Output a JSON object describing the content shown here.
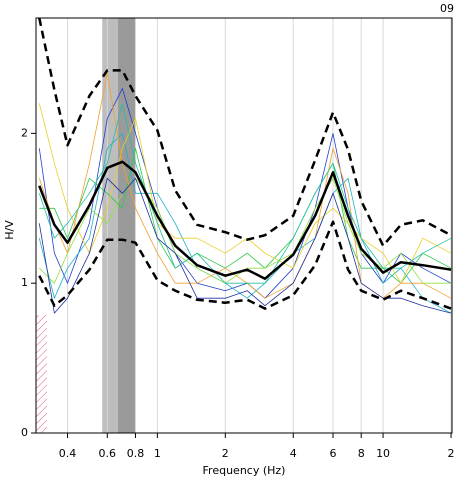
{
  "chart_data": {
    "type": "line",
    "corner_label": "09",
    "xlabel": "Frequency (Hz)",
    "ylabel": "H/V",
    "xscale": "log",
    "xlim": [
      0.29,
      20.2
    ],
    "ylim": [
      0,
      2.77
    ],
    "xticks": [
      0.4,
      0.6,
      0.8,
      1,
      2,
      4,
      6,
      8,
      10,
      {
        "value": 20,
        "label": "2"
      }
    ],
    "yticks": [
      0,
      1,
      2
    ],
    "grid": true,
    "peak_band": [
      0.57,
      0.8
    ],
    "peak_core": [
      0.67,
      0.8
    ],
    "x": [
      0.3,
      0.35,
      0.4,
      0.5,
      0.6,
      0.7,
      0.8,
      1,
      1.2,
      1.5,
      2,
      2.5,
      3,
      4,
      5,
      6,
      7,
      8,
      10,
      12,
      15,
      20
    ],
    "series": [
      {
        "color": "#1f3fd0",
        "width": 0.8,
        "values": [
          1.9,
          1.2,
          1.0,
          1.4,
          2.1,
          2.3,
          2.0,
          1.5,
          1.2,
          1.0,
          0.95,
          1.0,
          0.9,
          1.1,
          1.5,
          2.0,
          1.5,
          1.2,
          1.0,
          1.2,
          1.1,
          1.0
        ]
      },
      {
        "color": "#2ec84a",
        "width": 0.8,
        "values": [
          1.5,
          1.5,
          1.3,
          1.7,
          1.6,
          1.5,
          1.9,
          1.3,
          1.1,
          1.2,
          1.1,
          1.2,
          1.1,
          1.3,
          1.6,
          1.8,
          1.3,
          1.1,
          1.1,
          1.0,
          1.2,
          1.1
        ]
      },
      {
        "color": "#1ab0c8",
        "width": 0.8,
        "values": [
          1.3,
          0.9,
          1.1,
          1.3,
          1.9,
          2.0,
          1.6,
          1.6,
          1.4,
          1.1,
          1.0,
          0.9,
          1.0,
          1.2,
          1.3,
          1.6,
          1.7,
          1.3,
          1.0,
          1.1,
          0.9,
          0.8
        ]
      },
      {
        "color": "#e8d020",
        "width": 0.8,
        "values": [
          2.2,
          1.8,
          1.5,
          1.2,
          1.5,
          1.9,
          2.1,
          1.4,
          1.3,
          1.3,
          1.2,
          1.3,
          1.2,
          1.1,
          1.4,
          1.5,
          1.4,
          1.3,
          1.2,
          1.0,
          1.3,
          1.2
        ]
      },
      {
        "color": "#f0a030",
        "width": 0.8,
        "values": [
          1.7,
          1.4,
          1.2,
          1.8,
          2.4,
          1.8,
          1.5,
          1.2,
          1.0,
          1.0,
          1.1,
          1.0,
          0.9,
          1.0,
          1.3,
          1.9,
          1.6,
          1.0,
          0.9,
          1.0,
          1.0,
          0.9
        ]
      },
      {
        "color": "#90e040",
        "width": 0.8,
        "values": [
          1.1,
          1.0,
          1.2,
          1.5,
          1.4,
          1.6,
          1.7,
          1.5,
          1.2,
          1.1,
          1.0,
          1.1,
          1.1,
          1.2,
          1.5,
          1.7,
          1.4,
          1.2,
          1.1,
          1.2,
          1.0,
          1.0
        ]
      },
      {
        "color": "#20c0a0",
        "width": 0.8,
        "values": [
          1.6,
          1.3,
          1.4,
          1.6,
          1.8,
          2.2,
          1.8,
          1.4,
          1.1,
          1.2,
          1.0,
          1.0,
          1.0,
          1.3,
          1.6,
          1.8,
          1.5,
          1.3,
          1.1,
          1.1,
          1.2,
          1.3
        ]
      },
      {
        "color": "#2030a0",
        "width": 0.8,
        "values": [
          1.4,
          0.8,
          0.9,
          1.2,
          1.7,
          1.6,
          1.7,
          1.3,
          1.2,
          0.9,
          0.9,
          0.95,
          0.85,
          1.0,
          1.3,
          1.6,
          1.3,
          1.0,
          0.9,
          0.9,
          0.85,
          0.8
        ]
      },
      {
        "color": "#000000",
        "width": 2.5,
        "dash": "8,5",
        "values": [
          2.77,
          2.29,
          1.92,
          2.25,
          2.42,
          2.42,
          2.25,
          2.02,
          1.62,
          1.39,
          1.34,
          1.29,
          1.32,
          1.45,
          1.82,
          2.14,
          1.89,
          1.55,
          1.25,
          1.39,
          1.42,
          1.32
        ]
      },
      {
        "color": "#000000",
        "width": 2.5,
        "dash": "8,5",
        "values": [
          1.05,
          0.85,
          0.92,
          1.09,
          1.29,
          1.29,
          1.27,
          1.02,
          0.95,
          0.89,
          0.87,
          0.89,
          0.83,
          0.92,
          1.12,
          1.41,
          1.09,
          0.95,
          0.89,
          0.95,
          0.9,
          0.83
        ]
      },
      {
        "color": "#000000",
        "width": 2.5,
        "values": [
          1.65,
          1.39,
          1.27,
          1.52,
          1.77,
          1.81,
          1.74,
          1.45,
          1.25,
          1.12,
          1.05,
          1.09,
          1.03,
          1.19,
          1.45,
          1.74,
          1.45,
          1.23,
          1.07,
          1.14,
          1.12,
          1.09
        ]
      }
    ]
  }
}
